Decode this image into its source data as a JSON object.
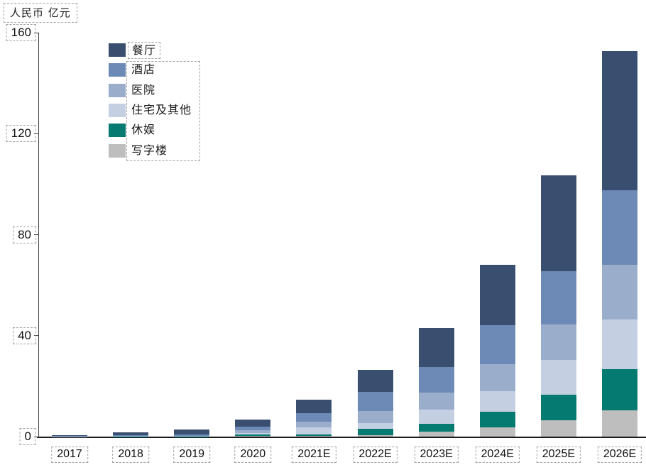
{
  "unit_label": "人民币 亿元",
  "chart_data": {
    "type": "bar",
    "stacked": true,
    "title": "",
    "ylabel": "人民币亿元",
    "xlabel": "",
    "ylim": [
      0,
      160
    ],
    "yticks": [
      0,
      40,
      80,
      120,
      160
    ],
    "grid": false,
    "legend_position": "top-left",
    "legend_order_note": "legend lists top-of-stack first; bars stack bottom-up as 写字楼, 休娱, 住宅及其他, 医院, 酒店, 餐厅",
    "categories": [
      "2017",
      "2018",
      "2019",
      "2020",
      "2021E",
      "2022E",
      "2023E",
      "2024E",
      "2025E",
      "2026E"
    ],
    "series": [
      {
        "name": "餐厅",
        "color": "#3A4F70",
        "values": [
          0.3,
          1.0,
          2.0,
          2.8,
          5.3,
          8.7,
          15.5,
          24.0,
          38.0,
          55.0
        ]
      },
      {
        "name": "酒店",
        "color": "#6D8AB6",
        "values": [
          0.1,
          0.3,
          0.5,
          1.4,
          3.4,
          7.6,
          10.0,
          15.5,
          21.0,
          29.5
        ]
      },
      {
        "name": "医院",
        "color": "#9AAECC",
        "values": [
          0.05,
          0.15,
          0.2,
          1.1,
          2.3,
          4.8,
          6.8,
          10.7,
          14.0,
          21.7
        ]
      },
      {
        "name": "住宅及其他",
        "color": "#C5CFE2",
        "values": [
          0.05,
          0.1,
          0.1,
          0.6,
          2.8,
          2.3,
          5.6,
          8.0,
          14.0,
          19.7
        ]
      },
      {
        "name": "休娱",
        "color": "#047A70",
        "values": [
          0.0,
          0.05,
          0.05,
          0.6,
          0.6,
          2.5,
          3.1,
          6.2,
          10.0,
          16.3
        ]
      },
      {
        "name": "写字楼",
        "color": "#BEBEBE",
        "values": [
          0.0,
          0.05,
          0.05,
          0.25,
          0.3,
          0.6,
          2.0,
          3.7,
          6.5,
          10.4
        ]
      }
    ],
    "axis_color": "#3c3c3c",
    "annotation_box_color": "#a3a3a3"
  }
}
